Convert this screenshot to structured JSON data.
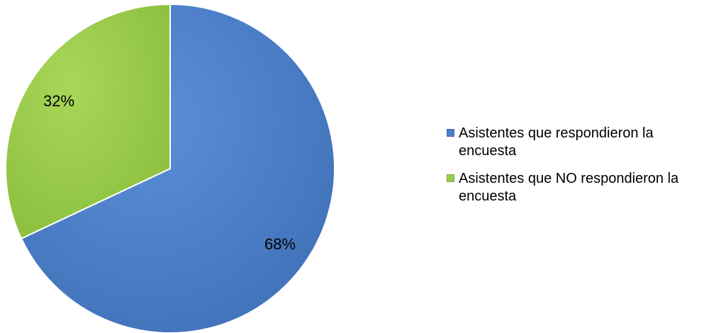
{
  "chart_data": {
    "type": "pie",
    "title": "",
    "categories": [
      "Asistentes que respondieron la encuesta",
      "Asistentes que NO respondieron la encuesta"
    ],
    "values": [
      68,
      32
    ],
    "data_labels": [
      "68%",
      "32%"
    ],
    "colors": [
      "#4A7EC9",
      "#9ACC4A"
    ],
    "legend_position": "right"
  }
}
